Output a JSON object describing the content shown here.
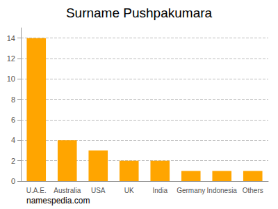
{
  "chart_data": {
    "type": "bar",
    "title": "Surname Pushpakumara",
    "categories": [
      "U.A.E.",
      "Australia",
      "USA",
      "UK",
      "India",
      "Germany",
      "Indonesia",
      "Others"
    ],
    "values": [
      14,
      4,
      3,
      2,
      2,
      1,
      1,
      1
    ],
    "color": "#ffa500",
    "ylim": [
      0,
      15
    ],
    "yticks": [
      0,
      2,
      4,
      6,
      8,
      10,
      12,
      14
    ],
    "grid": true,
    "annotations": [
      "namespedia.com"
    ]
  }
}
